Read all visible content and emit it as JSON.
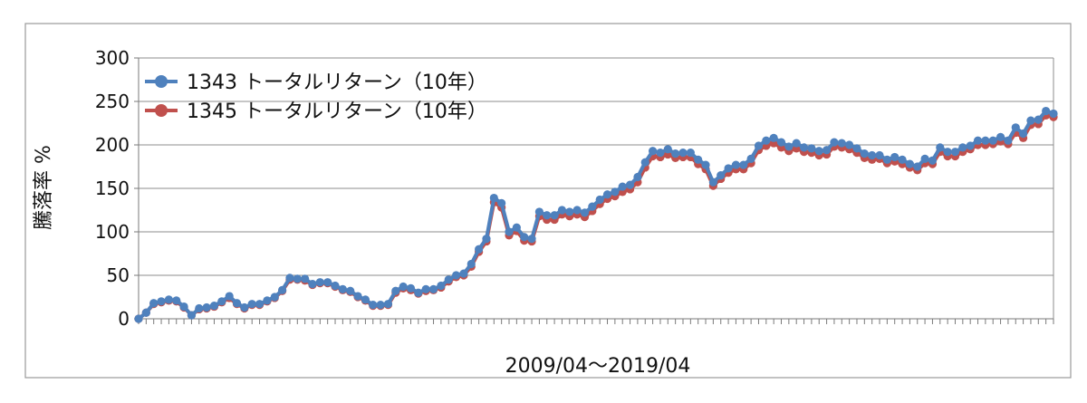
{
  "chart_data": {
    "type": "line",
    "title": "",
    "xlabel": "2009/04～2019/04",
    "ylabel": "騰落率 %",
    "ylim": [
      0,
      300
    ],
    "yticks": [
      0,
      50,
      100,
      150,
      200,
      250,
      300
    ],
    "grid": true,
    "legend_position": "top-left",
    "series": [
      {
        "name": "1343 トータルリターン（10年）",
        "color": "#4f81bd",
        "values": [
          0,
          7,
          18,
          20,
          22,
          21,
          14,
          4,
          12,
          13,
          15,
          20,
          26,
          18,
          13,
          17,
          17,
          21,
          25,
          33,
          47,
          46,
          46,
          40,
          42,
          42,
          38,
          34,
          32,
          26,
          22,
          16,
          16,
          17,
          32,
          37,
          35,
          30,
          34,
          34,
          38,
          45,
          50,
          52,
          63,
          80,
          92,
          139,
          133,
          100,
          105,
          94,
          92,
          123,
          119,
          119,
          125,
          123,
          125,
          122,
          129,
          137,
          143,
          146,
          152,
          154,
          163,
          180,
          193,
          191,
          195,
          190,
          191,
          191,
          183,
          177,
          157,
          165,
          173,
          177,
          177,
          184,
          199,
          205,
          208,
          203,
          198,
          202,
          197,
          196,
          193,
          194,
          203,
          202,
          200,
          196,
          190,
          188,
          188,
          183,
          186,
          183,
          178,
          175,
          184,
          182,
          197,
          192,
          192,
          197,
          199,
          205,
          205,
          205,
          209,
          205,
          220,
          213,
          228,
          229,
          239,
          236
        ]
      },
      {
        "name": "1345 トータルリターン（10年）",
        "color": "#c0504d",
        "values": [
          0,
          7,
          17,
          19,
          21,
          20,
          13,
          4,
          11,
          12,
          14,
          19,
          24,
          17,
          12,
          16,
          16,
          20,
          24,
          32,
          45,
          45,
          44,
          39,
          41,
          41,
          37,
          33,
          31,
          25,
          21,
          15,
          15,
          16,
          30,
          35,
          33,
          29,
          32,
          33,
          36,
          43,
          48,
          50,
          60,
          77,
          89,
          134,
          128,
          96,
          101,
          90,
          89,
          118,
          114,
          114,
          120,
          118,
          120,
          117,
          124,
          132,
          138,
          141,
          146,
          149,
          157,
          174,
          187,
          186,
          189,
          185,
          186,
          186,
          178,
          172,
          153,
          161,
          168,
          172,
          172,
          179,
          194,
          199,
          202,
          197,
          193,
          196,
          192,
          191,
          188,
          189,
          198,
          197,
          195,
          191,
          185,
          183,
          184,
          179,
          181,
          178,
          174,
          171,
          179,
          178,
          192,
          187,
          187,
          192,
          195,
          200,
          200,
          201,
          204,
          201,
          214,
          208,
          223,
          224,
          234,
          232
        ]
      }
    ]
  }
}
